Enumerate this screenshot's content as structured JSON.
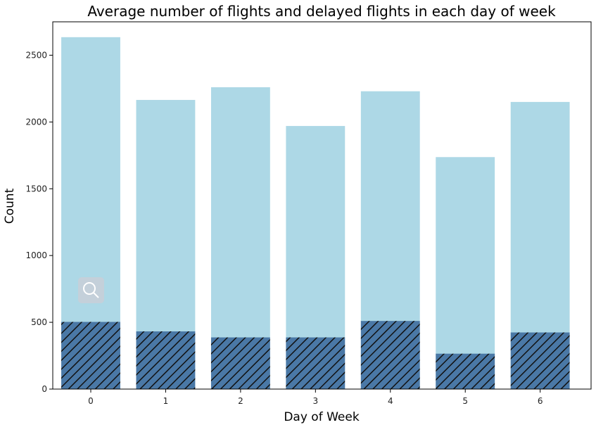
{
  "chart_data": {
    "type": "bar",
    "title": "Average number of flights and delayed flights in each day of week",
    "xlabel": "Day of Week",
    "ylabel": "Count",
    "categories": [
      "0",
      "1",
      "2",
      "3",
      "4",
      "5",
      "6"
    ],
    "ylim": [
      0,
      2750
    ],
    "yticks": [
      0,
      500,
      1000,
      1500,
      2000,
      2500
    ],
    "grid": false,
    "series": [
      {
        "values": [
          2635,
          2165,
          2260,
          1970,
          2230,
          1737,
          2150
        ],
        "color": "#add8e6",
        "pattern": "solid"
      },
      {
        "values": [
          503,
          432,
          387,
          387,
          510,
          265,
          424
        ],
        "color": "#4a78a6",
        "pattern": "diagonal-hatch"
      }
    ]
  },
  "overlay": {
    "icon": "magnifier-icon"
  }
}
